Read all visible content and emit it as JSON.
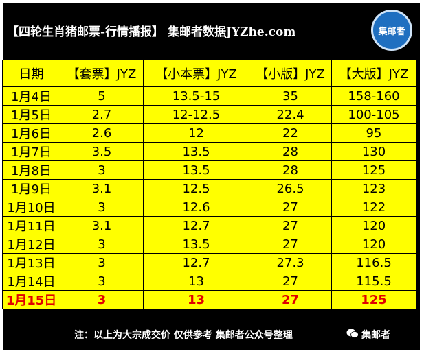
{
  "header": {
    "title": "【四轮生肖猪邮票-行情播报】 集邮者数据JYZhe.com",
    "logo": "集邮者"
  },
  "table": {
    "columns": [
      "日期",
      "【套票】JYZ",
      "【小本票】JYZ",
      "【小版】JYZ",
      "【大版】JYZ"
    ],
    "rows": [
      [
        "1月4日",
        "5",
        "13.5-15",
        "35",
        "158-160"
      ],
      [
        "1月5日",
        "2.7",
        "12-12.5",
        "22.4",
        "100-105"
      ],
      [
        "1月6日",
        "2.6",
        "12",
        "22",
        "95"
      ],
      [
        "1月7日",
        "3.5",
        "13.5",
        "28",
        "130"
      ],
      [
        "1月8日",
        "3",
        "13.5",
        "28",
        "125"
      ],
      [
        "1月9日",
        "3.1",
        "12.5",
        "26.5",
        "123"
      ],
      [
        "1月10日",
        "3",
        "12.6",
        "27",
        "122"
      ],
      [
        "1月11日",
        "3.1",
        "12.7",
        "27",
        "120"
      ],
      [
        "1月12日",
        "3",
        "13.5",
        "27",
        "120"
      ],
      [
        "1月13日",
        "3",
        "12.7",
        "27.3",
        "116.5"
      ],
      [
        "1月14日",
        "3",
        "13",
        "27",
        "115.5"
      ],
      [
        "1月15日",
        "3",
        "13",
        "27",
        "125"
      ]
    ]
  },
  "footer": {
    "note": "注：以上为大宗成交价 仅供参考 集邮者公众号整理",
    "brand": "集邮者"
  }
}
